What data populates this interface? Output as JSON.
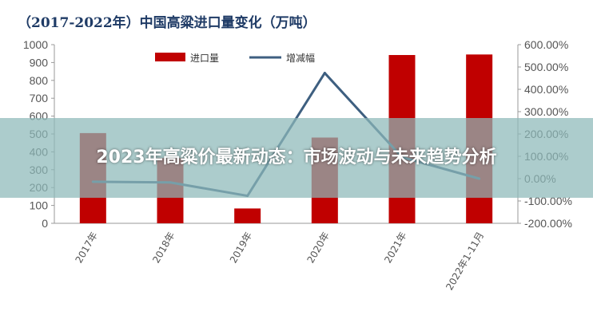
{
  "chart_data": {
    "type": "bar",
    "title": "（2017-2022年）中国高粱进口量变化（万吨）",
    "categories": [
      "2017年",
      "2018年",
      "2019年",
      "2020年",
      "2021年",
      "2022年1-11月"
    ],
    "series": [
      {
        "name": "进口量",
        "kind": "bar",
        "axis": "left",
        "color": "#c00000",
        "values": [
          505,
          365,
          83,
          480,
          942,
          945
        ]
      },
      {
        "name": "增减幅",
        "kind": "line",
        "axis": "right",
        "color": "#3e5f80",
        "values": [
          -0.14,
          -0.17,
          -0.77,
          4.73,
          0.96,
          0.0
        ]
      }
    ],
    "left_axis": {
      "ylim": [
        0,
        1000
      ],
      "ticks": [
        "0",
        "100",
        "200",
        "300",
        "400",
        "500",
        "600",
        "700",
        "800",
        "900",
        "1000"
      ]
    },
    "right_axis": {
      "ylim": [
        -2,
        6
      ],
      "ticks": [
        "-200.00%",
        "-100.00%",
        "0.00%",
        "100.00%",
        "200.00%",
        "300.00%",
        "400.00%",
        "500.00%",
        "600.00%"
      ]
    },
    "legend": "top-center",
    "grid": false
  },
  "overlay": {
    "text": "2023年高粱价最新动态：市场波动与未来趋势分析"
  }
}
